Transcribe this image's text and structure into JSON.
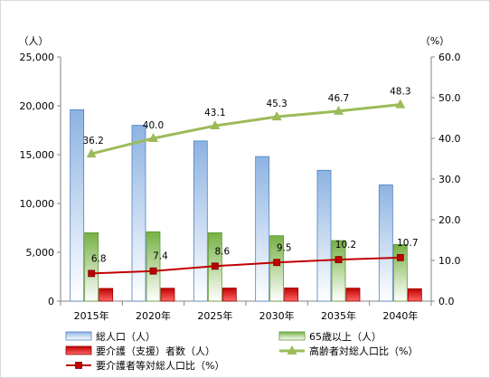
{
  "chart_data": {
    "type": "bar",
    "categories": [
      "2015年",
      "2020年",
      "2025年",
      "2030年",
      "2035年",
      "2040年"
    ],
    "left_axis": {
      "unit": "（人）",
      "range": [
        0,
        25000
      ],
      "ticks": [
        "0",
        "5,000",
        "10,000",
        "15,000",
        "20,000",
        "25,000"
      ]
    },
    "right_axis": {
      "unit": "（%）",
      "range": [
        0,
        60
      ],
      "ticks": [
        "0.0",
        "10.0",
        "20.0",
        "30.0",
        "40.0",
        "50.0",
        "60.0"
      ]
    },
    "series": [
      {
        "name": "総人口（人）",
        "kind": "bar",
        "axis": "left",
        "color": "#4f81bd",
        "values": [
          19600,
          18000,
          16400,
          14800,
          13400,
          11900
        ]
      },
      {
        "name": "65歳以上（人）",
        "kind": "bar",
        "axis": "left",
        "color": "#77b144",
        "values": [
          7000,
          7100,
          7000,
          6700,
          6200,
          5800
        ]
      },
      {
        "name": "要介護（支援）者数（人）",
        "kind": "bar",
        "axis": "left",
        "color": "#c00000",
        "values": [
          1300,
          1320,
          1340,
          1350,
          1330,
          1270
        ]
      },
      {
        "name": "高齢者対総人口比（%）",
        "kind": "line",
        "axis": "right",
        "color": "#9bbb59",
        "marker": "triangle",
        "values": [
          36.2,
          40.0,
          43.1,
          45.3,
          46.7,
          48.3
        ],
        "labels": [
          "36.2",
          "40.0",
          "43.1",
          "45.3",
          "46.7",
          "48.3"
        ]
      },
      {
        "name": "要介護者等対総人口比（%）",
        "kind": "line",
        "axis": "right",
        "color": "#c00000",
        "marker": "square",
        "values": [
          6.8,
          7.4,
          8.6,
          9.5,
          10.2,
          10.7
        ],
        "labels": [
          "6.8",
          "7.4",
          "8.6",
          "9.5",
          "10.2",
          "10.7"
        ]
      }
    ],
    "grid": false,
    "legend_position": "bottom"
  }
}
